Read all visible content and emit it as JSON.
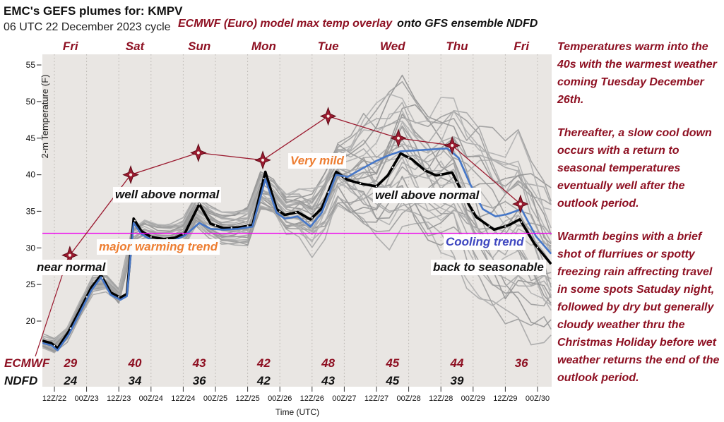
{
  "header": {
    "title": "EMC's GEFS plumes for: KMPV",
    "subtitle": "06 UTC 22 December 2023 cycle",
    "overlay_note_red": "ECMWF (Euro) model max temp overlay",
    "overlay_note_black": "onto GFS ensemble NDFD"
  },
  "side_panel": {
    "paragraphs": [
      "Temperatures warm into the 40s with the warmest weather coming Tuesday December 26th.",
      "Thereafter, a slow cool down occurs with a return to seasonal temperatures eventually well after the outlook period.",
      "Warmth begins with a brief shot of flurriues or spotty freezing rain affrecting travel in some spots Satuday night, followed by dry but generally cloudy weather thru the Christmas Holiday before wet weather returns the end of the outlook period."
    ]
  },
  "chart_data": {
    "type": "line",
    "title": "EMC's GEFS plumes for: KMPV",
    "xlabel": "Time (UTC)",
    "ylabel": "2-m Temperature (F)",
    "x_tick_labels": [
      "12Z/22",
      "00Z/23",
      "12Z/23",
      "00Z/24",
      "12Z/24",
      "00Z/25",
      "12Z/25",
      "00Z/26",
      "12Z/26",
      "00Z/27",
      "12Z/27",
      "00Z/28",
      "12Z/28",
      "00Z/29",
      "12Z/29",
      "00Z/30"
    ],
    "day_labels": [
      "Fri",
      "Sat",
      "Sun",
      "Mon",
      "Tue",
      "Wed",
      "Thu",
      "Fri"
    ],
    "y_ticks": [
      20,
      25,
      30,
      35,
      40,
      45,
      50,
      55
    ],
    "ylim": [
      11,
      56.5
    ],
    "grid": "vertical-dotted",
    "plot_bg": "#E9E6E3",
    "gridline_color": "#b7b3ae",
    "freezing_line": {
      "value": 32,
      "color": "#EE00EE"
    },
    "series": {
      "gefs_members": {
        "name": "GEFS ensemble members",
        "count": 31,
        "colors": [
          "#ababab",
          "#a0a0a0",
          "#b3b3b3",
          "#979797"
        ],
        "upper_spread": [
          [
            -0.4,
            0.8
          ],
          [
            1,
            1.0
          ],
          [
            2,
            1.3
          ],
          [
            2.5,
            2.0
          ],
          [
            3.5,
            2.2
          ],
          [
            4.5,
            2.4
          ],
          [
            6,
            2.6
          ],
          [
            7,
            3.0
          ],
          [
            8,
            4.2
          ],
          [
            8.8,
            5.5
          ],
          [
            9.5,
            8.0
          ],
          [
            10.2,
            10.0
          ],
          [
            10.8,
            10.5
          ],
          [
            11.5,
            9.5
          ],
          [
            12.5,
            10.5
          ],
          [
            13.3,
            16.0
          ],
          [
            14,
            12.5
          ],
          [
            14.7,
            11.0
          ],
          [
            15.42,
            9.0
          ]
        ],
        "lower_spread": [
          [
            -0.4,
            0.7
          ],
          [
            1,
            0.9
          ],
          [
            2,
            1.2
          ],
          [
            2.5,
            1.8
          ],
          [
            3.5,
            2.0
          ],
          [
            4.5,
            2.2
          ],
          [
            6,
            2.4
          ],
          [
            7,
            2.8
          ],
          [
            8,
            3.4
          ],
          [
            8.8,
            4.2
          ],
          [
            9.5,
            5.5
          ],
          [
            10.5,
            8.0
          ],
          [
            11.5,
            9.5
          ],
          [
            12.5,
            11.0
          ],
          [
            13.5,
            11.0
          ],
          [
            14.2,
            13.0
          ],
          [
            15.42,
            10.0
          ]
        ]
      },
      "gefs_mean": {
        "name": "GEFS ensemble mean",
        "color": "#000000",
        "points": [
          [
            -0.37,
            17.3
          ],
          [
            -0.1,
            17.0
          ],
          [
            0.1,
            16.3
          ],
          [
            0.45,
            18.6
          ],
          [
            0.8,
            21.6
          ],
          [
            1.15,
            24.6
          ],
          [
            1.45,
            26.3
          ],
          [
            1.75,
            23.9
          ],
          [
            2.05,
            23.2
          ],
          [
            2.25,
            23.7
          ],
          [
            2.46,
            34.0
          ],
          [
            2.7,
            32.3
          ],
          [
            3.0,
            31.5
          ],
          [
            3.4,
            31.2
          ],
          [
            3.75,
            31.4
          ],
          [
            4.05,
            32.0
          ],
          [
            4.5,
            36.0
          ],
          [
            4.85,
            33.3
          ],
          [
            5.25,
            32.7
          ],
          [
            5.7,
            32.8
          ],
          [
            6.15,
            33.1
          ],
          [
            6.55,
            40.4
          ],
          [
            6.9,
            35.3
          ],
          [
            7.15,
            34.5
          ],
          [
            7.55,
            34.9
          ],
          [
            7.95,
            33.9
          ],
          [
            8.3,
            35.4
          ],
          [
            8.75,
            40.4
          ],
          [
            9.1,
            39.3
          ],
          [
            9.5,
            38.8
          ],
          [
            10.0,
            38.4
          ],
          [
            10.35,
            39.9
          ],
          [
            10.75,
            42.9
          ],
          [
            11.1,
            42.1
          ],
          [
            11.5,
            40.6
          ],
          [
            11.85,
            39.9
          ],
          [
            12.35,
            40.3
          ],
          [
            12.75,
            36.8
          ],
          [
            13.1,
            34.2
          ],
          [
            13.65,
            32.5
          ],
          [
            14.1,
            33.1
          ],
          [
            14.45,
            33.9
          ],
          [
            14.9,
            30.6
          ],
          [
            15.42,
            27.8
          ]
        ]
      },
      "ndfd": {
        "name": "NDFD",
        "color": "#4677C8",
        "points": [
          [
            -0.37,
            17.0
          ],
          [
            -0.1,
            16.7
          ],
          [
            0.1,
            16.0
          ],
          [
            0.45,
            18.2
          ],
          [
            0.8,
            21.2
          ],
          [
            1.15,
            24.2
          ],
          [
            1.45,
            26.0
          ],
          [
            1.75,
            23.6
          ],
          [
            2.05,
            22.9
          ],
          [
            2.25,
            23.4
          ],
          [
            2.46,
            33.4
          ],
          [
            2.7,
            31.9
          ],
          [
            3.0,
            31.1
          ],
          [
            3.4,
            30.9
          ],
          [
            3.75,
            31.1
          ],
          [
            4.05,
            31.7
          ],
          [
            4.5,
            33.4
          ],
          [
            4.85,
            32.6
          ],
          [
            5.25,
            32.5
          ],
          [
            5.7,
            32.6
          ],
          [
            6.15,
            32.9
          ],
          [
            6.55,
            39.4
          ],
          [
            6.9,
            34.8
          ],
          [
            7.15,
            34.0
          ],
          [
            7.55,
            34.3
          ],
          [
            7.95,
            32.9
          ],
          [
            8.3,
            34.8
          ],
          [
            8.75,
            40.0
          ],
          [
            9.1,
            39.7
          ],
          [
            9.5,
            40.7
          ],
          [
            10.0,
            41.9
          ],
          [
            10.35,
            42.6
          ],
          [
            10.75,
            43.2
          ],
          [
            11.1,
            43.3
          ],
          [
            11.5,
            43.4
          ],
          [
            11.85,
            43.5
          ],
          [
            12.2,
            43.6
          ],
          [
            12.55,
            42.3
          ],
          [
            12.9,
            38.8
          ],
          [
            13.3,
            35.3
          ],
          [
            13.7,
            34.3
          ],
          [
            14.05,
            34.6
          ],
          [
            14.5,
            35.3
          ],
          [
            14.95,
            31.6
          ],
          [
            15.42,
            29.2
          ]
        ]
      },
      "ecmwf_max": {
        "name": "ECMWF max temp",
        "color": "#9B1B30",
        "marker": "4-point-star",
        "t": [
          0.48,
          2.37,
          4.47,
          6.47,
          8.5,
          10.68,
          12.35,
          14.47
        ],
        "values": [
          29,
          40,
          43,
          42,
          48,
          45,
          44,
          36
        ],
        "leader_line": {
          "from": [
            50,
            505
          ],
          "to": [
            97,
            363
          ]
        }
      }
    },
    "value_rows": [
      {
        "label": "ECMWF",
        "color": "#8E1022",
        "values": [
          "29",
          "40",
          "43",
          "42",
          "48",
          "45",
          "44",
          "36"
        ]
      },
      {
        "label": "NDFD",
        "color": "#111111",
        "values": [
          "24",
          "34",
          "36",
          "42",
          "43",
          "45",
          "39",
          ""
        ]
      }
    ],
    "annotations": [
      {
        "text": "near normal",
        "color": "#111111",
        "x": 49,
        "y": 368
      },
      {
        "text": "well above normal",
        "color": "#111111",
        "x": 160,
        "y": 265
      },
      {
        "text": "major warming trend",
        "color": "#ED7D31",
        "x": 137,
        "y": 339
      },
      {
        "text": "Very mild",
        "color": "#ED7D31",
        "x": 408,
        "y": 217
      },
      {
        "text": "well above normal",
        "color": "#111111",
        "x": 528,
        "y": 266
      },
      {
        "text": "Cooling trend",
        "color": "#3E46C0",
        "x": 628,
        "y": 332
      },
      {
        "text": "back to seasonable",
        "color": "#111111",
        "x": 610,
        "y": 368
      }
    ]
  }
}
